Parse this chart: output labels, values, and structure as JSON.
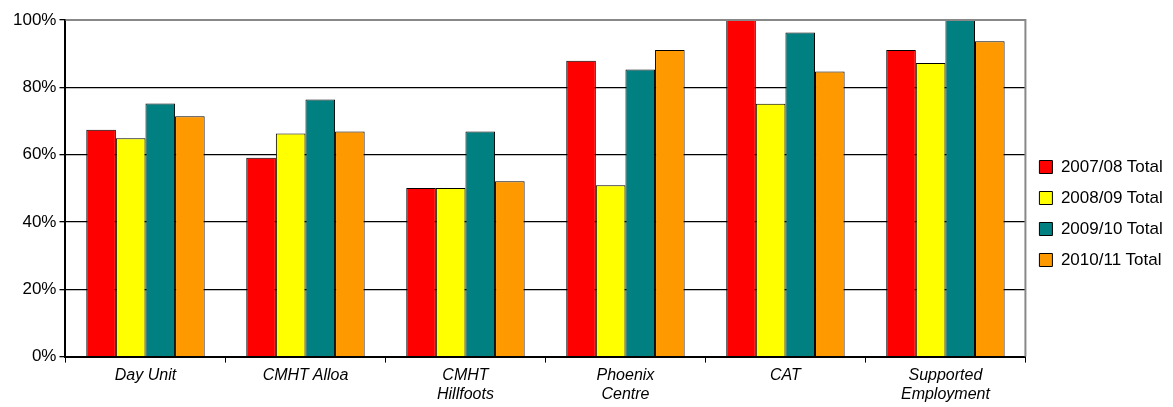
{
  "chart_data": {
    "type": "bar",
    "categories": [
      "Day Unit",
      "CMHT Alloa",
      "CMHT\nHillfoots",
      "Phoenix\nCentre",
      "CAT",
      "Supported\nEmployment"
    ],
    "series": [
      {
        "name": "2007/08 Total",
        "color": "#ff0000",
        "values": [
          67.4,
          59.1,
          50.1,
          87.9,
          100,
          91.1
        ]
      },
      {
        "name": "2008/09 Total",
        "color": "#ffff00",
        "values": [
          64.9,
          66.3,
          50.1,
          50.9,
          75.1,
          87.2
        ]
      },
      {
        "name": "2009/10 Total",
        "color": "#008080",
        "values": [
          75.2,
          76.4,
          66.9,
          85.3,
          96.3,
          100
        ]
      },
      {
        "name": "2010/11 Total",
        "color": "#ff9900",
        "values": [
          71.4,
          66.9,
          52.1,
          91.1,
          84.7,
          93.7
        ]
      }
    ],
    "ylim": [
      0,
      100
    ],
    "yticks": [
      {
        "value": 0,
        "label": "0%"
      },
      {
        "value": 20,
        "label": "20%"
      },
      {
        "value": 40,
        "label": "40%"
      },
      {
        "value": 60,
        "label": "60%"
      },
      {
        "value": 80,
        "label": "80%"
      },
      {
        "value": 100,
        "label": "100%"
      }
    ],
    "grid": "y",
    "legend": "right"
  }
}
